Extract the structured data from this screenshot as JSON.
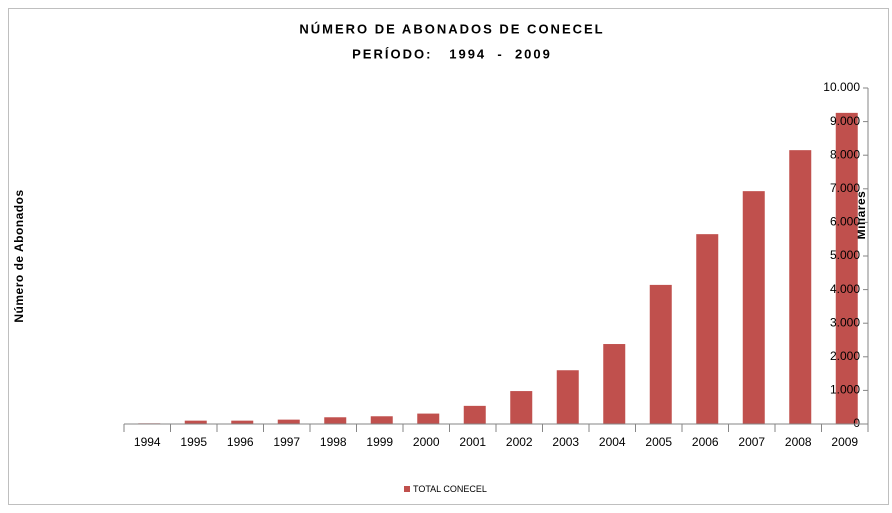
{
  "chart_data": {
    "type": "bar",
    "title": "NÚMERO DE ABONADOS DE CONECEL",
    "subtitle": "PERÍODO:   1994  -  2009",
    "y_label": "Número de Abonados",
    "y_unit_label": "Miliares",
    "categories": [
      "1994",
      "1995",
      "1996",
      "1997",
      "1998",
      "1999",
      "2000",
      "2001",
      "2002",
      "2003",
      "2004",
      "2005",
      "2006",
      "2007",
      "2008",
      "2009"
    ],
    "series": [
      {
        "name": "TOTAL CONECEL",
        "color": "#c0504d",
        "values": [
          20,
          100,
          100,
          130,
          200,
          230,
          310,
          540,
          980,
          1600,
          2380,
          4140,
          5650,
          6930,
          8150,
          9260
        ]
      }
    ],
    "ylim": [
      0,
      10000
    ],
    "yticks": [
      0,
      {
        "value": 1000,
        "label": "1.000"
      },
      {
        "value": 2000,
        "label": "2.000"
      },
      {
        "value": 3000,
        "label": "3.000"
      },
      {
        "value": 4000,
        "label": "4.000"
      },
      {
        "value": 5000,
        "label": "5.000"
      },
      {
        "value": 6000,
        "label": "6.000"
      },
      {
        "value": 7000,
        "label": "7.000"
      },
      {
        "value": 8000,
        "label": "8.000"
      },
      {
        "value": 9000,
        "label": "9.000"
      },
      {
        "value": 10000,
        "label": "10.000"
      }
    ],
    "legend": "bottom"
  }
}
